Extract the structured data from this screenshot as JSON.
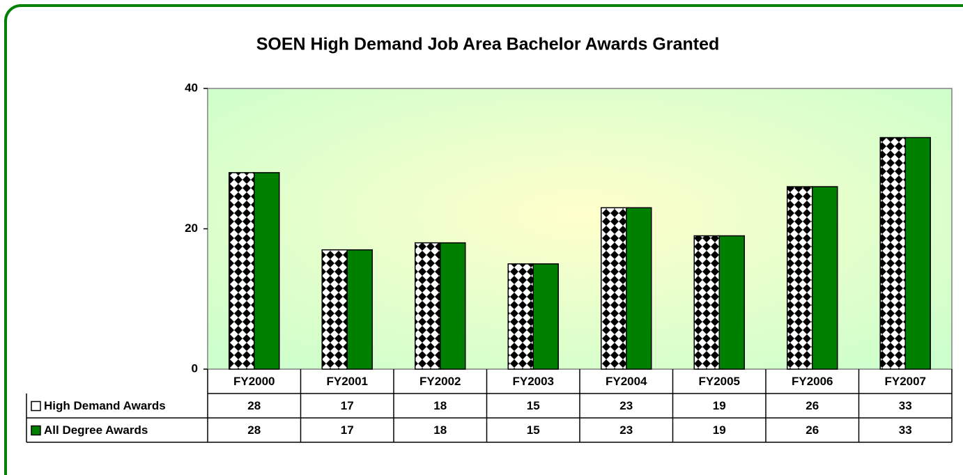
{
  "chart_data": {
    "type": "bar",
    "title": "SOEN High Demand Job Area Bachelor Awards Granted",
    "categories": [
      "FY2000",
      "FY2001",
      "FY2002",
      "FY2003",
      "FY2004",
      "FY2005",
      "FY2006",
      "FY2007"
    ],
    "series": [
      {
        "name": "High Demand Awards",
        "color": "#008000",
        "pattern": "checker",
        "values": [
          28,
          17,
          18,
          15,
          23,
          19,
          26,
          33
        ]
      },
      {
        "name": "All Degree Awards",
        "color": "#008000",
        "values": [
          28,
          17,
          18,
          15,
          23,
          19,
          26,
          33
        ]
      }
    ],
    "ylim": [
      0,
      40
    ],
    "yticks": [
      0,
      20,
      40
    ],
    "grid": false,
    "data_table": true
  }
}
